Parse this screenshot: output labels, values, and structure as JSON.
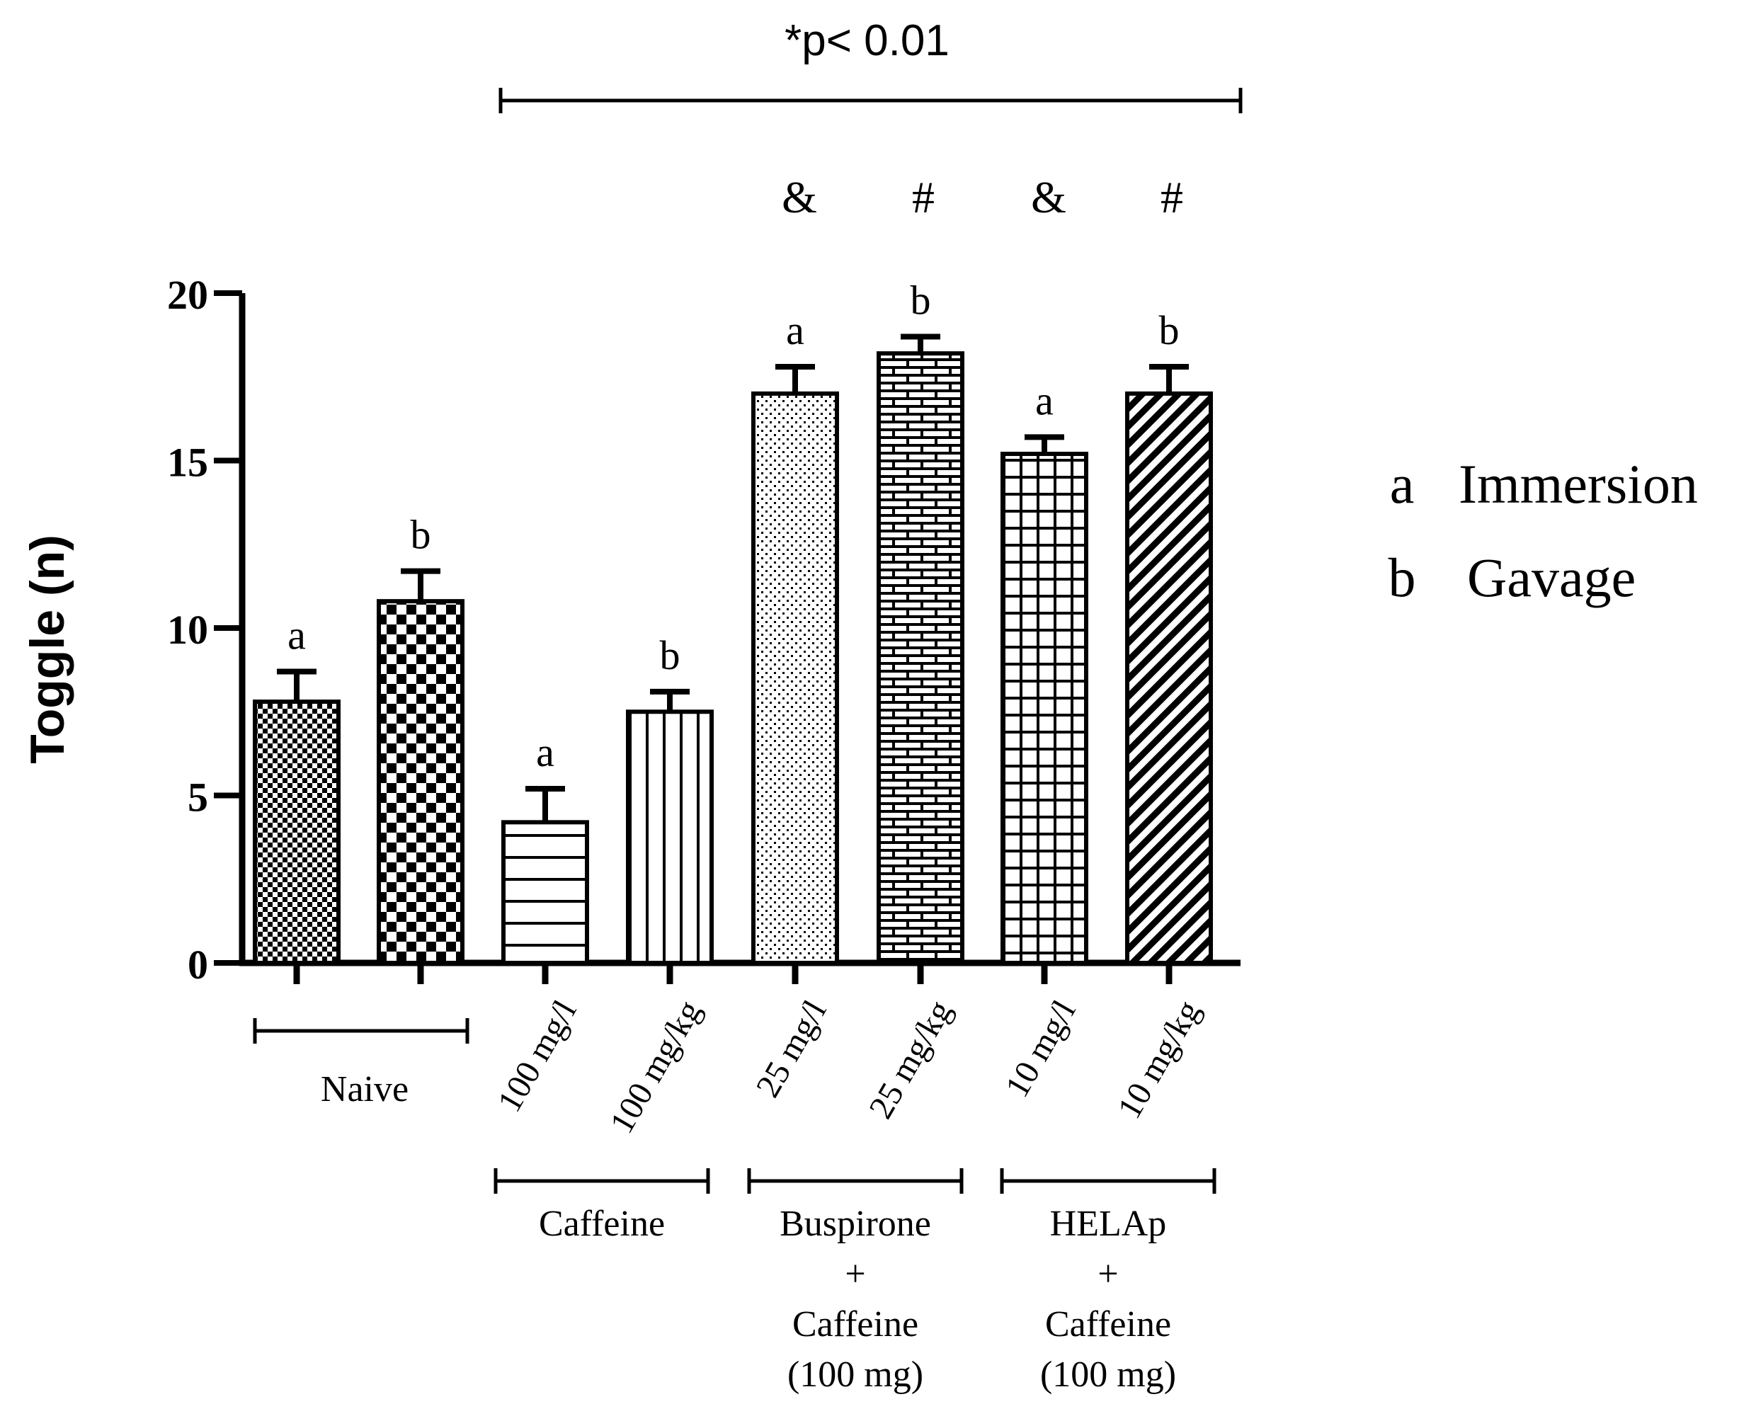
{
  "chart_data": {
    "type": "bar",
    "title": "",
    "ylabel": "Toggle (n)",
    "xlabel": "",
    "ylim": [
      0,
      20
    ],
    "yticks": [
      0,
      5,
      10,
      15,
      20
    ],
    "significance": {
      "label": "*p< 0.01",
      "from_bar": 2,
      "to_bar": 7
    },
    "bars": [
      {
        "value": 7.8,
        "error": 0.9,
        "letter": "a",
        "mark": "",
        "pattern": "fine-check",
        "dose": ""
      },
      {
        "value": 10.8,
        "error": 0.9,
        "letter": "b",
        "mark": "",
        "pattern": "checker",
        "dose": ""
      },
      {
        "value": 4.2,
        "error": 1.0,
        "letter": "a",
        "mark": "",
        "pattern": "horizontal",
        "dose": "100 mg/l"
      },
      {
        "value": 7.5,
        "error": 0.6,
        "letter": "b",
        "mark": "",
        "pattern": "vertical",
        "dose": "100 mg/kg"
      },
      {
        "value": 17.0,
        "error": 0.8,
        "letter": "a",
        "mark": "&",
        "pattern": "dots",
        "dose": "25 mg/l"
      },
      {
        "value": 18.2,
        "error": 0.5,
        "letter": "b",
        "mark": "#",
        "pattern": "brick",
        "dose": "25 mg/kg"
      },
      {
        "value": 15.2,
        "error": 0.5,
        "letter": "a",
        "mark": "&",
        "pattern": "grid",
        "dose": "10 mg/l"
      },
      {
        "value": 17.0,
        "error": 0.8,
        "letter": "b",
        "mark": "#",
        "pattern": "diagonal",
        "dose": "10 mg/kg"
      }
    ],
    "groups": [
      {
        "bars": [
          0,
          1
        ],
        "lines": [
          "Naive"
        ]
      },
      {
        "bars": [
          2,
          3
        ],
        "lines": [
          "Caffeine"
        ]
      },
      {
        "bars": [
          4,
          5
        ],
        "lines": [
          "Buspirone",
          "+",
          "Caffeine",
          "(100 mg)"
        ]
      },
      {
        "bars": [
          6,
          7
        ],
        "lines": [
          "HELAp",
          "+",
          "Caffeine",
          "(100 mg)"
        ]
      }
    ],
    "legend": [
      {
        "key": "a",
        "label": "Immersion"
      },
      {
        "key": "b",
        "label": "Gavage"
      }
    ],
    "colors": {
      "ink": "#000000",
      "fill": "#ffffff"
    }
  }
}
